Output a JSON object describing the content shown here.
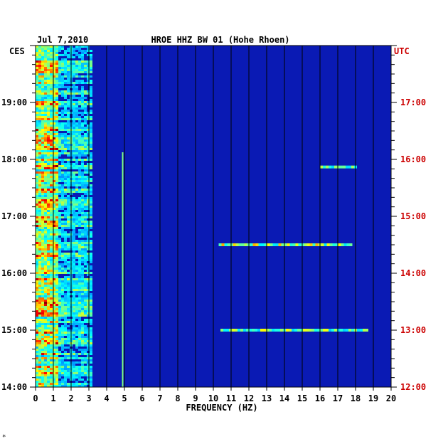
{
  "chart_data": {
    "type": "heatmap",
    "date": "Jul 7,2010",
    "title": "HROE HHZ BW 01 (Hohe Rhoen)",
    "left_time_zone": "CES",
    "right_time_zone": "UTC",
    "xlabel": "FREQUENCY (HZ)",
    "xlim": [
      0,
      20
    ],
    "x_ticks": [
      0,
      1,
      2,
      3,
      4,
      5,
      6,
      7,
      8,
      9,
      10,
      11,
      12,
      13,
      14,
      15,
      16,
      17,
      18,
      19,
      20
    ],
    "left_time_ticks": [
      "14:00",
      "15:00",
      "16:00",
      "17:00",
      "18:00",
      "19:00"
    ],
    "right_time_ticks": [
      "12:00",
      "13:00",
      "14:00",
      "15:00",
      "16:00",
      "17:00"
    ],
    "ylim_hours_ces": [
      14.0,
      20.0
    ],
    "grid": true,
    "colormap": [
      "#00007f",
      "#0000ff",
      "#00a0ff",
      "#00ffff",
      "#7fff7f",
      "#ffff00",
      "#ff7f00",
      "#ff0000",
      "#7f0000"
    ],
    "background_color": "#0a1ab4",
    "features": [
      {
        "description": "strong broadband energy",
        "x_range": [
          0.0,
          1.2
        ],
        "level": 0.75
      },
      {
        "description": "moderate energy band",
        "x_range": [
          1.2,
          3.2
        ],
        "level": 0.45
      },
      {
        "description": "persistent narrow spectral line",
        "x": 4.9,
        "level": 0.5
      },
      {
        "description": "transient high-frequency band",
        "time_ces": "16:30",
        "x_range": [
          10.3,
          17.8
        ],
        "level": 0.55
      },
      {
        "description": "transient high-frequency band",
        "time_ces": "15:00",
        "x_range": [
          10.4,
          18.6
        ],
        "level": 0.5
      },
      {
        "description": "transient high-frequency band",
        "time_ces": "17:52",
        "x_range": [
          16.0,
          18.0
        ],
        "level": 0.45
      }
    ]
  },
  "footer_mark": "*"
}
